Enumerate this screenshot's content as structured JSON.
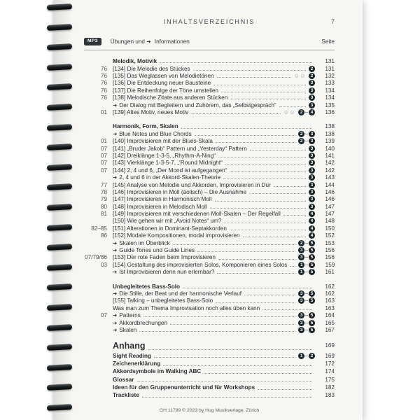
{
  "theme": {
    "page_bg": "#f6f6f3",
    "badge_bg": "#18252a",
    "mp3_badge_bg": "#2e3437",
    "text_color": "#2b3032"
  },
  "icons": {
    "arrow_char": "➜",
    "smiley_char": "☺"
  },
  "header": {
    "title": "INHALTSVERZEICHNIS",
    "page_number": "7"
  },
  "legend": {
    "mp3_label": "MP3",
    "label_pre": "Übungen und",
    "label_post": "Informationen",
    "right_label": "Seite"
  },
  "sections": [
    {
      "heading": "Melodik, Motivik",
      "heading_page": "131",
      "rows": [
        {
          "num": "76",
          "text": "[134] Die Melodie des Stückes",
          "badges": [
            2
          ],
          "page": "131"
        },
        {
          "num": "76",
          "text": "[135] Das Weglassen von Melodietönen",
          "smileys": 2,
          "badges": [
            2
          ],
          "page": "132"
        },
        {
          "num": "76",
          "text": "[136] Die Entdeckung neuer Bausteine",
          "badges": [
            3
          ],
          "page": "133"
        },
        {
          "num": "76",
          "text": "[137] Die Reihenfolge der Töne umstellen",
          "badges": [
            3
          ],
          "page": "134"
        },
        {
          "num": "76",
          "text": "[138] Melodische Zitate aus anderen Stücken",
          "badges": [
            3
          ],
          "page": "134"
        },
        {
          "arrow": true,
          "text": "Der Dialog mit Begleitern und Zuhörern, das „Selbstgespräch“",
          "badges": [
            3
          ],
          "page": "135"
        },
        {
          "num": "01",
          "text": "[139] Altes Motiv, neues Motiv",
          "smileys": 2,
          "badges": [
            2,
            4
          ],
          "page": "136"
        }
      ]
    },
    {
      "heading": "Harmonik, Form, Skalen",
      "heading_page": "138",
      "rows": [
        {
          "arrow": true,
          "text": "Blue Notes und Blue Chords",
          "badges": [
            2,
            3
          ],
          "page": "138"
        },
        {
          "num": "01",
          "text": "[140] Improvisieren mit der Blues-Skala",
          "badges": [
            2,
            3
          ],
          "page": "139"
        },
        {
          "num": "07",
          "text": "[141] „Bruder Jakob“ Pattern und „Yesterday“ Pattern",
          "badges": [
            3
          ],
          "page": "140"
        },
        {
          "num": "07",
          "text": "[142] Dreiklänge 1-3-5, „Rhythm-A-Ning“",
          "badges": [
            3
          ],
          "page": "141"
        },
        {
          "num": "07",
          "text": "[143] Vierklänge 1-3-5-7, „’Round Midnight“",
          "badges": [
            3
          ],
          "page": "142"
        },
        {
          "num": "07",
          "text": "[144] 2, 4 und 6, „Der Mond ist aufgegangen“",
          "badges": [
            3
          ],
          "page": "142"
        },
        {
          "arrow": true,
          "text": "2, 4 und 6 in der Akkord-Skalen-Theorie",
          "badges": [
            3
          ],
          "page": "143"
        },
        {
          "num": "77",
          "text": "[145] Analyse von Melodie und Akkorden, Improvisieren in Dur",
          "badges": [
            3
          ],
          "page": "144"
        },
        {
          "num": "78",
          "text": "[146] Improvisieren in Moll (äolisch) – Die Ausnahme",
          "badges": [
            3
          ],
          "page": "146"
        },
        {
          "num": "79",
          "text": "[147] Improvisieren in Harmonisch Moll",
          "badges": [
            3
          ],
          "page": "146"
        },
        {
          "num": "80",
          "text": "[148] Improvisieren in Melodisch Moll",
          "badges": [
            3
          ],
          "page": "147"
        },
        {
          "num": "81",
          "text": "[149] Improvisieren mit verschiedenen Moll-Skalen – Der Regelfall",
          "badges": [
            4
          ],
          "page": "147"
        },
        {
          "text": "[150] Wie gehen wir mit „Avoid Notes“ um?",
          "badges": [
            4
          ],
          "page": "148"
        },
        {
          "num": "82–85",
          "text": "[151] Alterationen in Dominant-Septakkorden",
          "badges": [
            4
          ],
          "page": "150"
        },
        {
          "num": "86",
          "text": "[152] Modale Kompositionen, modal improvisieren",
          "badges": [
            4
          ],
          "page": "152"
        },
        {
          "arrow": true,
          "text": "Skalen im Überblick",
          "badges": [
            2,
            5
          ],
          "page": "153"
        },
        {
          "arrow": true,
          "text": "Guide Tones und Guide Lines",
          "badges": [
            3,
            5
          ],
          "page": "156"
        },
        {
          "num": "07/79/86",
          "text": "[153] Der rote Faden beim Improvisieren",
          "badges": [
            3,
            5
          ],
          "page": "156"
        },
        {
          "num": "03",
          "text": "[154] Gestaltung des improvisierten Solos, Komponieren eines Solos",
          "badges": [
            1,
            5
          ],
          "page": "159"
        },
        {
          "arrow": true,
          "text": "Ist Improvisieren denn nun erlernbar?",
          "badges": [
            1,
            5
          ],
          "page": "161"
        }
      ]
    },
    {
      "heading": "Unbegleitetes Bass-Solo",
      "heading_page": "162",
      "rows": [
        {
          "arrow": true,
          "text": "Die Stille, der Beat und der harmonische Verlauf",
          "badges": [
            3,
            5
          ],
          "page": "162"
        },
        {
          "text": "[155] Talking – unbegleitetes Bass-Solo",
          "badges": [
            3,
            5
          ],
          "page": "163"
        },
        {
          "text": "Was man zum Thema Improvisation noch alles üben kann",
          "badges": [],
          "page": "163"
        },
        {
          "num": "07",
          "arrow": true,
          "text": "Patterns",
          "badges": [
            3,
            5
          ],
          "page": "164"
        },
        {
          "arrow": true,
          "text": "Akkordbrechungen",
          "badges": [
            3,
            5
          ],
          "page": "165"
        },
        {
          "arrow": true,
          "text": "Skalen",
          "badges": [
            3,
            5
          ],
          "page": "167"
        }
      ]
    }
  ],
  "anhang": {
    "heading": "Anhang",
    "heading_page": "169",
    "rows": [
      {
        "text": "Sight Reading",
        "badges": [
          1,
          2
        ],
        "page": "169"
      },
      {
        "text": "Zeichenerklärung",
        "badges": [],
        "page": "172"
      },
      {
        "text": "Akkordsymbole im Walking ABC",
        "badges": [],
        "page": "174"
      },
      {
        "text": "Glossar",
        "badges": [],
        "page": "175"
      },
      {
        "text": "Ideen für den Gruppenunterricht und für Workshops",
        "badges": [],
        "page": "182"
      },
      {
        "text": "Trackliste",
        "badges": [],
        "page": "183"
      }
    ]
  },
  "footer": {
    "text": "GH 11789 © 2023 by Hug Musikverlage, Zürich"
  }
}
